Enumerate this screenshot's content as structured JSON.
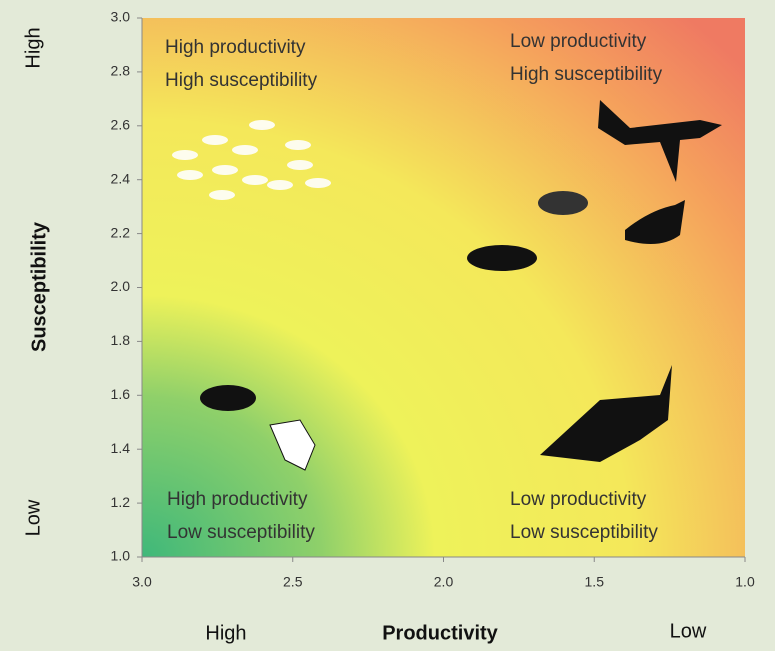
{
  "chart_data": {
    "type": "scatter",
    "x_label": "Productivity",
    "y_label": "Susceptibility",
    "x_end_labels": [
      "High",
      "Low"
    ],
    "y_end_labels": [
      "High",
      "Low"
    ],
    "xlim": [
      3.0,
      1.0
    ],
    "xticks": [
      {
        "value": 3,
        "label": "3.0"
      },
      2.5,
      {
        "value": 2,
        "label": "2.0"
      },
      1.5,
      {
        "value": 1,
        "label": "1.0"
      }
    ],
    "ylim": [
      1.0,
      3.0
    ],
    "yticks": [
      {
        "value": 1,
        "label": "1.0"
      },
      1.2,
      1.4,
      1.6,
      1.8,
      {
        "value": 2,
        "label": "2.0"
      },
      2.2,
      2.4,
      2.6,
      2.8,
      {
        "value": 3,
        "label": "3.0"
      }
    ],
    "annotations": [
      [
        "High productivity",
        "High susceptibility"
      ],
      [
        "Low productivity",
        "High susceptibility"
      ],
      [
        "High productivity",
        "Low susceptibility"
      ],
      [
        "Low productivity",
        "Low susceptibility"
      ]
    ]
  }
}
